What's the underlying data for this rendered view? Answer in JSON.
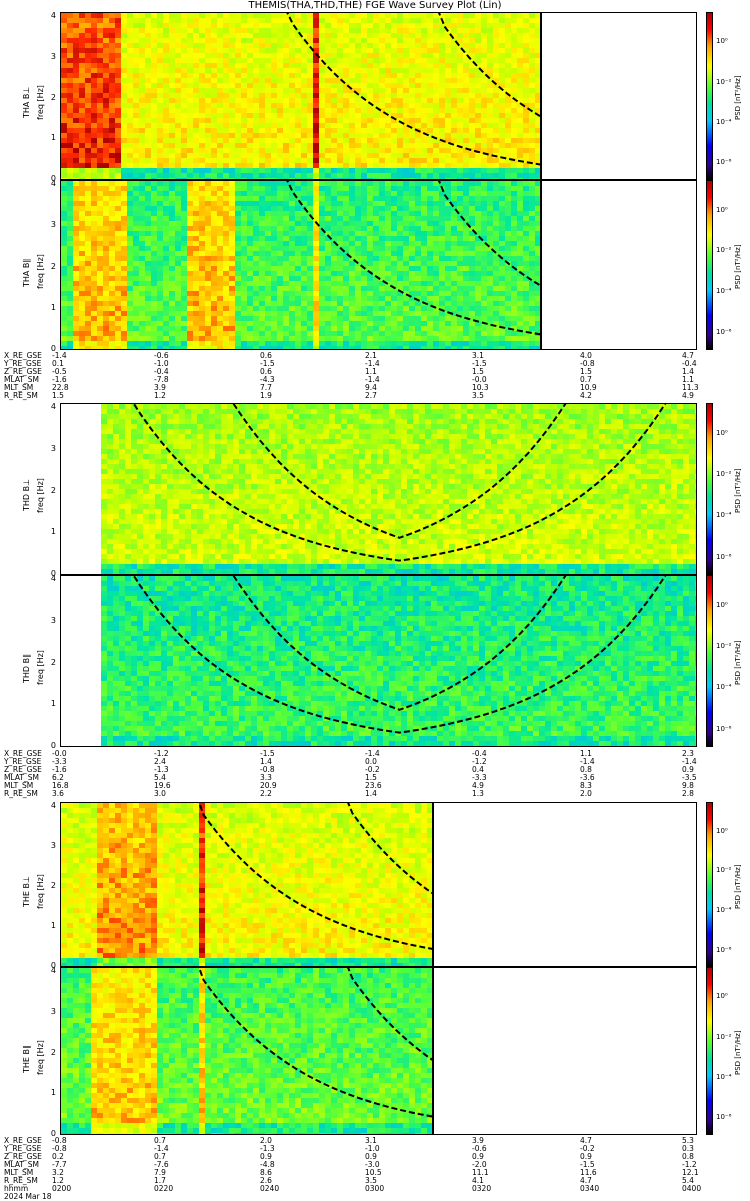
{
  "title": "THEMIS(THA,THD,THE) FGE Wave Survey Plot (Lin)",
  "panels": [
    {
      "id": "tha-bl",
      "label": "THA B⊥",
      "axis": "freq [Hz]",
      "cbar": "PSD [nT²/Hz]"
    },
    {
      "id": "tha-bll",
      "label": "THA B∥",
      "axis": "freq [Hz]",
      "cbar": "PSD [nT²/Hz]"
    },
    {
      "id": "thd-bl",
      "label": "THD B⊥",
      "axis": "freq [Hz]",
      "cbar": "PSD [nT²/Hz]"
    },
    {
      "id": "thd-bll",
      "label": "THD B∥",
      "axis": "freq [Hz]",
      "cbar": "PSD [nT²/Hz]"
    },
    {
      "id": "the-bl",
      "label": "THE B⊥",
      "axis": "freq [Hz]",
      "cbar": "PSD [nT²/Hz]"
    },
    {
      "id": "the-bll",
      "label": "THE B∥",
      "axis": "freq [Hz]",
      "cbar": "PSD [nT²/Hz]"
    }
  ],
  "yticks": [
    "0",
    "1",
    "2",
    "3",
    "4"
  ],
  "cbar_ticks": [
    "10⁰",
    "10⁻²",
    "10⁻⁴",
    "10⁻⁶"
  ],
  "ephem_names": [
    "X_RE_GSE",
    "Y_RE_GSE",
    "Z_RE_GSE",
    "MLAT_SM",
    "MLT_SM",
    "R_RE_SM"
  ],
  "ephem": {
    "tha": [
      [
        "-1.4",
        "-0.6",
        "0.6",
        "2.1",
        "3.1",
        "4.0",
        "4.7"
      ],
      [
        "0.1",
        "-1.0",
        "-1.5",
        "-1.4",
        "-1.5",
        "-0.8",
        "-0.4"
      ],
      [
        "-0.5",
        "-0.4",
        "0.6",
        "1.1",
        "1.5",
        "1.5",
        "1.4"
      ],
      [
        "-1.6",
        "-7.8",
        "-4.3",
        "-1.4",
        "-0.0",
        "0.7",
        "1.1"
      ],
      [
        "22.8",
        "3.9",
        "7.7",
        "9.4",
        "10.3",
        "10.9",
        "11.3"
      ],
      [
        "1.5",
        "1.2",
        "1.9",
        "2.7",
        "3.5",
        "4.2",
        "4.9"
      ]
    ],
    "thd": [
      [
        "-0.0",
        "-1.2",
        "-1.5",
        "-1.4",
        "-0.4",
        "1.1",
        "2.3"
      ],
      [
        "-3.3",
        "2.4",
        "1.4",
        "0.0",
        "-1.2",
        "-1.4",
        "-1.4"
      ],
      [
        "-1.6",
        "-1.3",
        "-0.8",
        "-0.2",
        "0.4",
        "0.8",
        "0.9"
      ],
      [
        "6.2",
        "5.4",
        "3.3",
        "1.5",
        "-3.3",
        "-3.6",
        "-3.5"
      ],
      [
        "16.8",
        "19.6",
        "20.9",
        "23.6",
        "4.9",
        "8.3",
        "9.8"
      ],
      [
        "3.6",
        "3.0",
        "2.2",
        "1.4",
        "1.3",
        "2.0",
        "2.8"
      ]
    ],
    "the": [
      [
        "-0.8",
        "0.7",
        "2.0",
        "3.1",
        "3.9",
        "4.7",
        "5.3"
      ],
      [
        "-0.8",
        "-1.4",
        "-1.3",
        "-1.0",
        "-0.6",
        "-0.2",
        "0.3"
      ],
      [
        "0.2",
        "0.7",
        "0.9",
        "0.9",
        "0.9",
        "0.9",
        "0.8"
      ],
      [
        "-7.7",
        "-7.6",
        "-4.8",
        "-3.0",
        "-2.0",
        "-1.5",
        "-1.2"
      ],
      [
        "3.2",
        "7.9",
        "8.6",
        "10.5",
        "11.1",
        "11.6",
        "12.1"
      ],
      [
        "1.2",
        "1.7",
        "2.6",
        "3.5",
        "4.1",
        "4.7",
        "5.4"
      ]
    ]
  },
  "time_label": "hhmm",
  "date_label": "2024 Mar 18",
  "time_ticks": [
    "0200",
    "0220",
    "0240",
    "0300",
    "0320",
    "0340",
    "0400"
  ],
  "colors": {
    "low": "#0000ff",
    "mid": "#00e0a0",
    "high": "#ff0000",
    "bg_yellow": "#ffff00"
  },
  "chart_data": [
    {
      "type": "heatmap",
      "title": "THEMIS(THA,THD,THE) FGE Wave Survey Plot (Lin)",
      "ylabel": "freq [Hz]",
      "ylim": [
        0,
        4
      ],
      "xlabel": "hhmm",
      "x": [
        "0200",
        "0220",
        "0240",
        "0300",
        "0320",
        "0340",
        "0400"
      ],
      "series": [
        {
          "name": "THA B⊥"
        },
        {
          "name": "THA B∥"
        },
        {
          "name": "THD B⊥"
        },
        {
          "name": "THD B∥"
        },
        {
          "name": "THE B⊥"
        },
        {
          "name": "THE B∥"
        }
      ],
      "colorbar_label": "PSD [nT²/Hz]",
      "colorbar_ticks": [
        "10⁰",
        "10⁻²",
        "10⁻⁴",
        "10⁻⁶"
      ]
    }
  ]
}
